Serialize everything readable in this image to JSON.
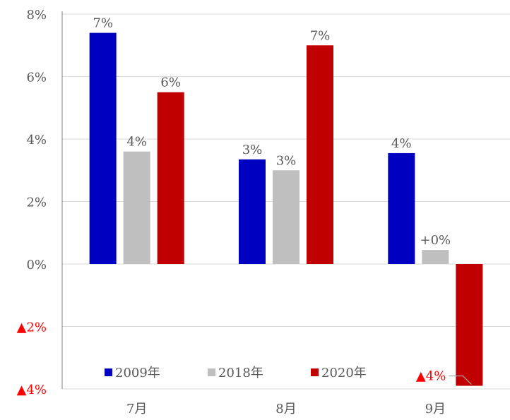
{
  "chart_data": {
    "type": "bar",
    "categories": [
      "7月",
      "8月",
      "9月"
    ],
    "series": [
      {
        "name": "2009年",
        "values": [
          7.4,
          3.35,
          3.55
        ],
        "labels": [
          "7%",
          "3%",
          "4%"
        ],
        "color": "#0000c0"
      },
      {
        "name": "2018年",
        "values": [
          3.6,
          3.0,
          0.45
        ],
        "labels": [
          "4%",
          "3%",
          "+0%"
        ],
        "color": "#bfbfbf"
      },
      {
        "name": "2020年",
        "values": [
          5.5,
          7.0,
          -3.9
        ],
        "labels": [
          "6%",
          "7%",
          "▲4%"
        ],
        "color": "#c00000"
      }
    ],
    "ylim": [
      -4,
      8
    ],
    "yticks": [
      {
        "value": 8,
        "label": "8%",
        "negative": false
      },
      {
        "value": 6,
        "label": "6%",
        "negative": false
      },
      {
        "value": 4,
        "label": "4%",
        "negative": false
      },
      {
        "value": 2,
        "label": "2%",
        "negative": false
      },
      {
        "value": 0,
        "label": "0%",
        "negative": false
      },
      {
        "value": -2,
        "label": "▲2%",
        "negative": true
      },
      {
        "value": -4,
        "label": "▲4%",
        "negative": true
      }
    ],
    "grid": true,
    "legend_position": "bottom",
    "negative_color": "#ff0000",
    "text_color": "#595959",
    "grid_color": "#d9d9d9"
  }
}
